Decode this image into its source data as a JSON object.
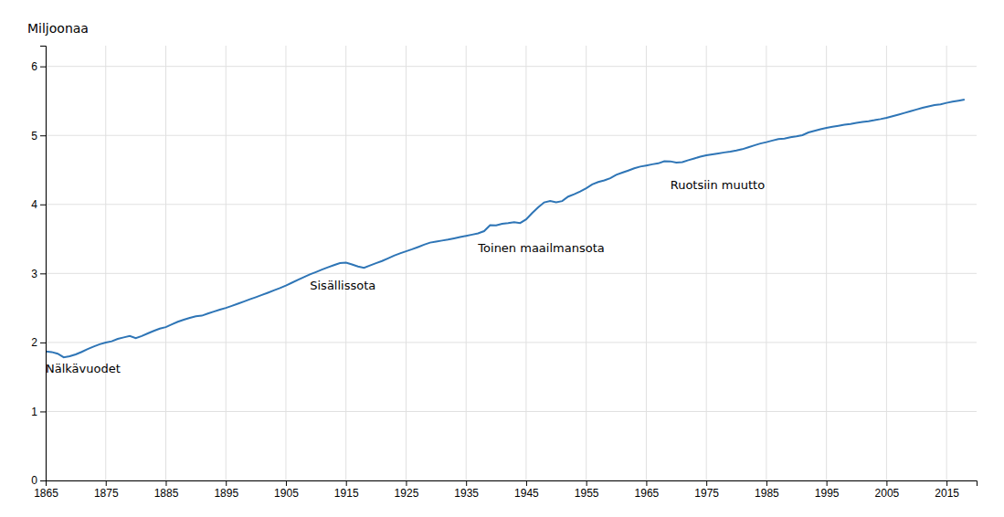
{
  "chart_data": {
    "type": "line",
    "ylabel": "Miljoonaa",
    "color": "#2e75b6",
    "grid": true,
    "xlim": [
      1865,
      2020
    ],
    "ylim": [
      0,
      6.3
    ],
    "xticks": [
      1865,
      1875,
      1885,
      1895,
      1905,
      1915,
      1925,
      1935,
      1945,
      1955,
      1965,
      1975,
      1985,
      1995,
      2005,
      2015
    ],
    "yticks": [
      0,
      1,
      2,
      3,
      4,
      5,
      6
    ],
    "annotations": [
      {
        "text": "Nälkävuodet",
        "x": 1865,
        "y": 1.52
      },
      {
        "text": "Sisällissota",
        "x": 1909,
        "y": 2.72
      },
      {
        "text": "Toinen maailmansota",
        "x": 1937,
        "y": 3.27
      },
      {
        "text": "Ruotsiin muutto",
        "x": 1969,
        "y": 4.18
      }
    ],
    "x": [
      1865,
      1866,
      1867,
      1868,
      1869,
      1870,
      1871,
      1872,
      1873,
      1874,
      1875,
      1876,
      1877,
      1878,
      1879,
      1880,
      1881,
      1882,
      1883,
      1884,
      1885,
      1886,
      1887,
      1888,
      1889,
      1890,
      1891,
      1892,
      1893,
      1894,
      1895,
      1896,
      1897,
      1898,
      1899,
      1900,
      1901,
      1902,
      1903,
      1904,
      1905,
      1906,
      1907,
      1908,
      1909,
      1910,
      1911,
      1912,
      1913,
      1914,
      1915,
      1916,
      1917,
      1918,
      1919,
      1920,
      1921,
      1922,
      1923,
      1924,
      1925,
      1926,
      1927,
      1928,
      1929,
      1930,
      1931,
      1932,
      1933,
      1934,
      1935,
      1936,
      1937,
      1938,
      1939,
      1940,
      1941,
      1942,
      1943,
      1944,
      1945,
      1946,
      1947,
      1948,
      1949,
      1950,
      1951,
      1952,
      1953,
      1954,
      1955,
      1956,
      1957,
      1958,
      1959,
      1960,
      1961,
      1962,
      1963,
      1964,
      1965,
      1966,
      1967,
      1968,
      1969,
      1970,
      1971,
      1972,
      1973,
      1974,
      1975,
      1976,
      1977,
      1978,
      1979,
      1980,
      1981,
      1982,
      1983,
      1984,
      1985,
      1986,
      1987,
      1988,
      1989,
      1990,
      1991,
      1992,
      1993,
      1994,
      1995,
      1996,
      1997,
      1998,
      1999,
      2000,
      2001,
      2002,
      2003,
      2004,
      2005,
      2006,
      2007,
      2008,
      2009,
      2010,
      2011,
      2012,
      2013,
      2014,
      2015,
      2016,
      2017,
      2018
    ],
    "values": [
      1.868,
      1.861,
      1.837,
      1.785,
      1.799,
      1.827,
      1.863,
      1.905,
      1.941,
      1.974,
      1.998,
      2.017,
      2.051,
      2.073,
      2.095,
      2.061,
      2.093,
      2.131,
      2.167,
      2.2,
      2.222,
      2.262,
      2.299,
      2.33,
      2.356,
      2.38,
      2.388,
      2.418,
      2.447,
      2.474,
      2.5,
      2.53,
      2.561,
      2.593,
      2.626,
      2.656,
      2.688,
      2.72,
      2.754,
      2.788,
      2.825,
      2.865,
      2.906,
      2.946,
      2.987,
      3.02,
      3.055,
      3.088,
      3.121,
      3.15,
      3.155,
      3.13,
      3.1,
      3.08,
      3.115,
      3.148,
      3.18,
      3.218,
      3.257,
      3.29,
      3.321,
      3.35,
      3.382,
      3.416,
      3.446,
      3.462,
      3.476,
      3.491,
      3.508,
      3.527,
      3.544,
      3.562,
      3.58,
      3.613,
      3.7,
      3.696,
      3.719,
      3.73,
      3.743,
      3.73,
      3.784,
      3.874,
      3.956,
      4.029,
      4.051,
      4.03,
      4.048,
      4.113,
      4.147,
      4.187,
      4.235,
      4.29,
      4.324,
      4.348,
      4.38,
      4.43,
      4.461,
      4.491,
      4.523,
      4.548,
      4.564,
      4.581,
      4.595,
      4.626,
      4.624,
      4.606,
      4.612,
      4.64,
      4.666,
      4.691,
      4.711,
      4.726,
      4.739,
      4.753,
      4.765,
      4.78,
      4.8,
      4.827,
      4.856,
      4.882,
      4.902,
      4.925,
      4.947,
      4.954,
      4.974,
      4.986,
      5.004,
      5.042,
      5.066,
      5.089,
      5.108,
      5.125,
      5.14,
      5.154,
      5.166,
      5.181,
      5.195,
      5.206,
      5.22,
      5.236,
      5.255,
      5.277,
      5.301,
      5.326,
      5.351,
      5.375,
      5.401,
      5.421,
      5.439,
      5.451,
      5.471,
      5.488,
      5.503,
      5.518
    ]
  }
}
